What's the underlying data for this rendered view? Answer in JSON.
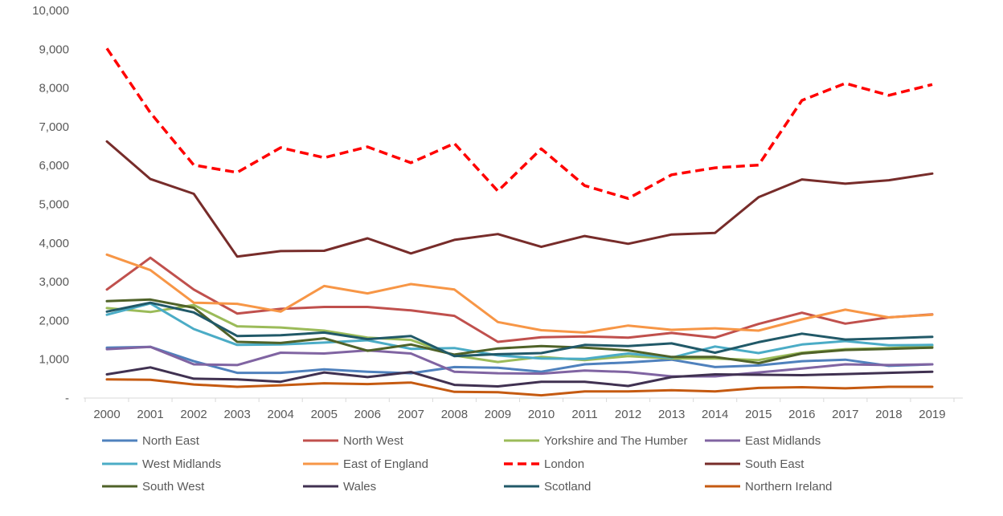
{
  "chart_data": {
    "type": "line",
    "title": "",
    "xlabel": "",
    "ylabel": "",
    "ylim": [
      0,
      10000
    ],
    "y_ticks": [
      {
        "value": 0,
        "label": "-"
      },
      {
        "value": 1000,
        "label": "1,000"
      },
      {
        "value": 2000,
        "label": "2,000"
      },
      {
        "value": 3000,
        "label": "3,000"
      },
      {
        "value": 4000,
        "label": "4,000"
      },
      {
        "value": 5000,
        "label": "5,000"
      },
      {
        "value": 6000,
        "label": "6,000"
      },
      {
        "value": 7000,
        "label": "7,000"
      },
      {
        "value": 8000,
        "label": "8,000"
      },
      {
        "value": 9000,
        "label": "9,000"
      },
      {
        "value": 10000,
        "label": "10,000"
      }
    ],
    "categories": [
      "2000",
      "2001",
      "2002",
      "2003",
      "2004",
      "2005",
      "2006",
      "2007",
      "2008",
      "2009",
      "2010",
      "2011",
      "2012",
      "2013",
      "2014",
      "2015",
      "2016",
      "2017",
      "2018",
      "2019"
    ],
    "grid": false,
    "legend_position": "bottom",
    "series": [
      {
        "name": "North East",
        "color": "#4f81bd",
        "dash": false,
        "values": [
          1300,
          1320,
          950,
          650,
          650,
          740,
          680,
          640,
          800,
          780,
          680,
          870,
          920,
          990,
          800,
          840,
          950,
          990,
          830,
          870
        ]
      },
      {
        "name": "North West",
        "color": "#c0504d",
        "dash": false,
        "values": [
          2800,
          3620,
          2800,
          2180,
          2300,
          2350,
          2350,
          2260,
          2120,
          1450,
          1570,
          1590,
          1560,
          1680,
          1560,
          1910,
          2200,
          1920,
          2080,
          2160
        ]
      },
      {
        "name": "Yorkshire and The Humber",
        "color": "#9bbb59",
        "dash": false,
        "values": [
          2320,
          2220,
          2400,
          1850,
          1820,
          1740,
          1560,
          1500,
          1100,
          930,
          1060,
          980,
          1080,
          1020,
          1020,
          980,
          1170,
          1260,
          1290,
          1340
        ]
      },
      {
        "name": "East Midlands",
        "color": "#8064a2",
        "dash": false,
        "values": [
          1260,
          1320,
          870,
          850,
          1170,
          1150,
          1230,
          1150,
          680,
          640,
          630,
          710,
          670,
          560,
          560,
          660,
          760,
          870,
          850,
          870
        ]
      },
      {
        "name": "West Midlands",
        "color": "#4bacc6",
        "dash": false,
        "values": [
          2150,
          2440,
          1780,
          1370,
          1380,
          1430,
          1490,
          1270,
          1290,
          1100,
          1020,
          1010,
          1150,
          1040,
          1330,
          1160,
          1380,
          1470,
          1360,
          1370
        ]
      },
      {
        "name": "East of England",
        "color": "#f79646",
        "dash": false,
        "values": [
          3700,
          3300,
          2460,
          2430,
          2230,
          2890,
          2700,
          2940,
          2800,
          1960,
          1750,
          1690,
          1870,
          1760,
          1800,
          1740,
          2030,
          2280,
          2080,
          2150
        ]
      },
      {
        "name": "London",
        "color": "#ff0000",
        "dash": true,
        "values": [
          9020,
          7360,
          6010,
          5820,
          6460,
          6200,
          6480,
          6070,
          6570,
          5340,
          6430,
          5480,
          5150,
          5760,
          5940,
          6010,
          7680,
          8120,
          7810,
          8090
        ]
      },
      {
        "name": "South East",
        "color": "#772c2a",
        "dash": false,
        "values": [
          6620,
          5650,
          5270,
          3650,
          3790,
          3800,
          4120,
          3730,
          4080,
          4230,
          3900,
          4180,
          3980,
          4220,
          4260,
          5180,
          5640,
          5530,
          5620,
          5790
        ]
      },
      {
        "name": "South West",
        "color": "#4f6228",
        "dash": false,
        "values": [
          2500,
          2540,
          2330,
          1450,
          1420,
          1540,
          1220,
          1380,
          1120,
          1280,
          1340,
          1300,
          1230,
          1060,
          1060,
          900,
          1150,
          1240,
          1270,
          1300
        ]
      },
      {
        "name": "Wales",
        "color": "#403151",
        "dash": false,
        "values": [
          610,
          790,
          500,
          480,
          420,
          660,
          540,
          670,
          340,
          300,
          420,
          420,
          310,
          540,
          610,
          600,
          590,
          620,
          650,
          680
        ]
      },
      {
        "name": "Scotland",
        "color": "#215968",
        "dash": false,
        "values": [
          2230,
          2460,
          2210,
          1600,
          1620,
          1690,
          1520,
          1600,
          1080,
          1130,
          1160,
          1370,
          1340,
          1410,
          1170,
          1440,
          1660,
          1510,
          1540,
          1580
        ]
      },
      {
        "name": "Northern Ireland",
        "color": "#c55a11",
        "dash": false,
        "values": [
          480,
          470,
          350,
          290,
          330,
          380,
          360,
          400,
          160,
          150,
          70,
          170,
          170,
          200,
          170,
          260,
          280,
          250,
          290,
          290
        ]
      }
    ]
  }
}
